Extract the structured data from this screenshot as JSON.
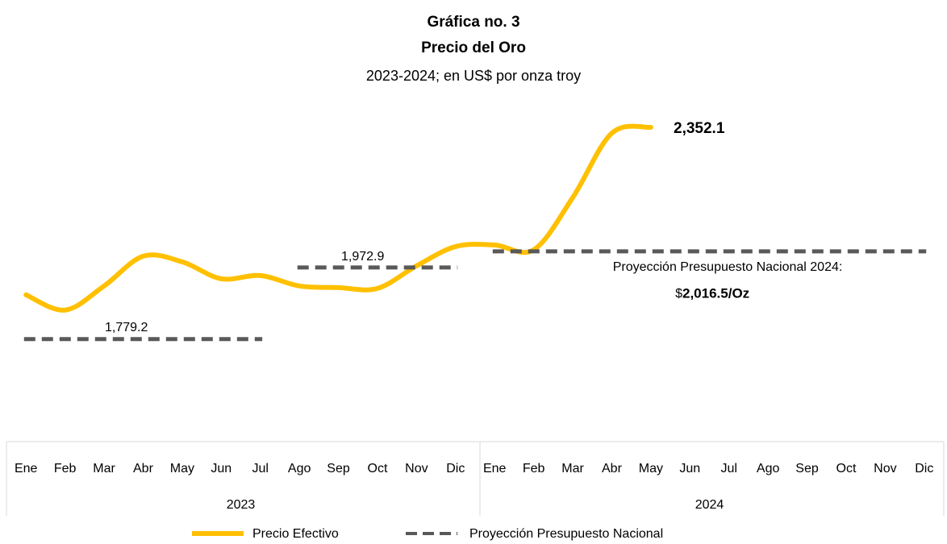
{
  "chart_data": {
    "type": "line",
    "title": "Gráfica no. 3",
    "subtitle": "Precio del Oro",
    "caption": "2023-2024; en US$ por onza troy",
    "categories": [
      "Ene",
      "Feb",
      "Mar",
      "Abr",
      "May",
      "Jun",
      "Jul",
      "Ago",
      "Sep",
      "Oct",
      "Nov",
      "Dic",
      "Ene",
      "Feb",
      "Mar",
      "Abr",
      "May",
      "Jun",
      "Jul",
      "Ago",
      "Sep",
      "Oct",
      "Nov",
      "Dic"
    ],
    "groups": [
      "2023",
      "2024"
    ],
    "series": [
      {
        "name": "Precio Efectivo",
        "color": "#ffc000",
        "style": "solid",
        "values": [
          1898.9,
          1857.6,
          1922.9,
          2003.4,
          1988.1,
          1942.4,
          1951.1,
          1922.9,
          1918.5,
          1916.3,
          1977.3,
          2029.5,
          2033.8,
          2020.8,
          2162.2,
          2336.3,
          2352.1,
          null,
          null,
          null,
          null,
          null,
          null,
          null
        ]
      },
      {
        "name": "Proyección Presupuesto Nacional",
        "color": "#595959",
        "style": "dashed",
        "values": [
          1779.2,
          1779.2,
          1779.2,
          1779.2,
          1779.2,
          1779.2,
          1779.2,
          1972.9,
          1972.9,
          1972.9,
          1972.9,
          1972.9,
          2016.5,
          2016.5,
          2016.5,
          2016.5,
          2016.5,
          2016.5,
          2016.5,
          2016.5,
          2016.5,
          2016.5,
          2016.5,
          2016.5
        ]
      }
    ],
    "annotations": [
      "2,352.1",
      "1,972.9",
      "1,779.2",
      "Proyección Presupuesto Nacional 2024:",
      "$",
      "2,016.5/Oz"
    ],
    "ylim": [
      1650,
      2400
    ],
    "grid": false
  }
}
